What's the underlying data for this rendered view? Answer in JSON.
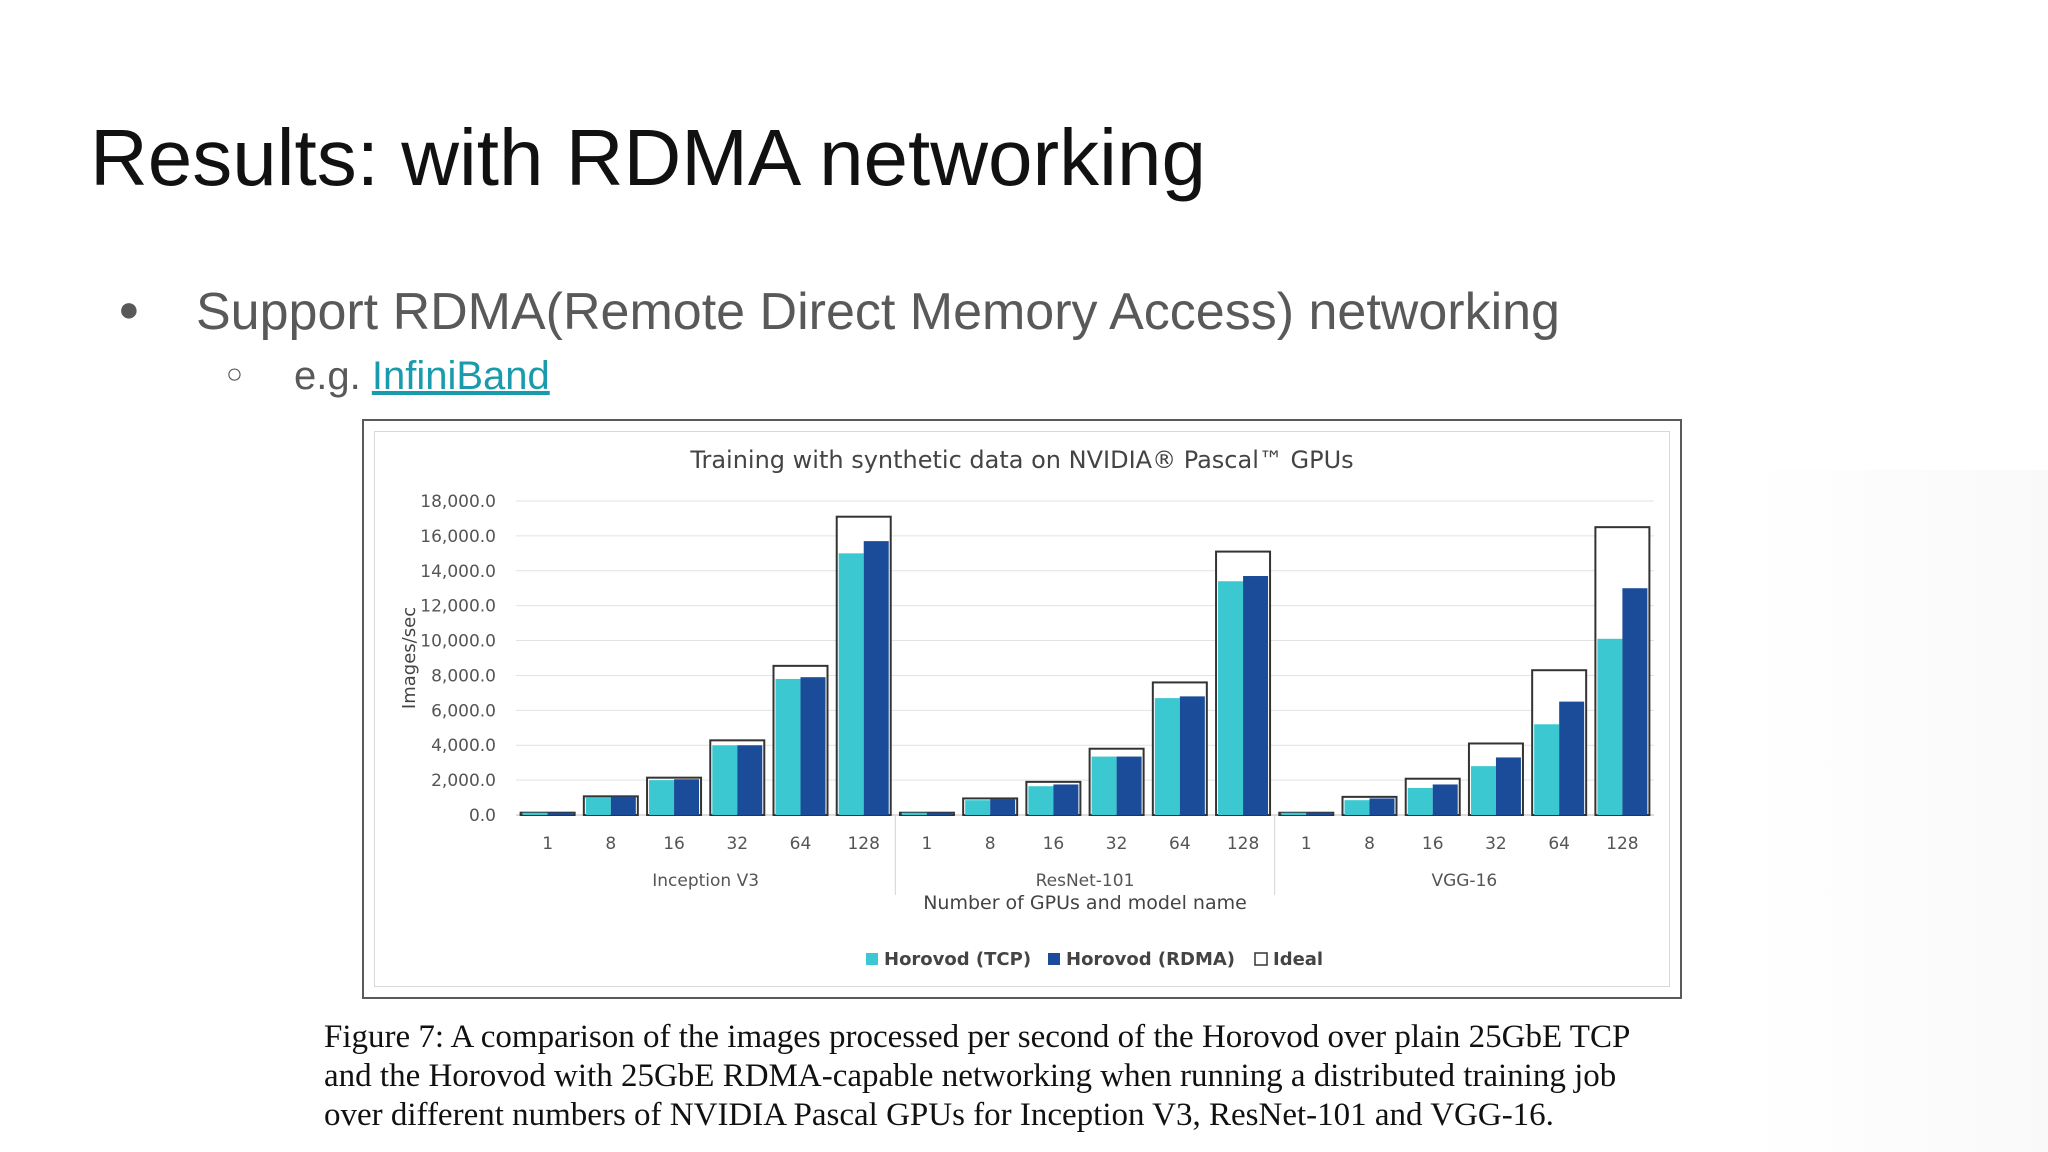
{
  "slide": {
    "title": "Results: with RDMA networking",
    "bullet": "Support RDMA(Remote Direct Memory Access) networking",
    "sub_prefix": "e.g. ",
    "sub_link": "InfiniBand"
  },
  "colors": {
    "tcp": "#3cc8d0",
    "rdma": "#1b4c9a",
    "ideal": "#ffffff",
    "link": "#1a9bad"
  },
  "chart_data": {
    "type": "bar",
    "title": "Training with synthetic data on NVIDIA® Pascal™ GPUs",
    "xlabel": "Number of GPUs and model name",
    "ylabel": "Images/sec",
    "ylim": [
      0,
      18000
    ],
    "yticks": [
      "0.0",
      "2,000.0",
      "4,000.0",
      "6,000.0",
      "8,000.0",
      "10,000.0",
      "12,000.0",
      "14,000.0",
      "16,000.0",
      "18,000.0"
    ],
    "grid": true,
    "legend_position": "bottom",
    "groups": [
      {
        "name": "Inception V3",
        "categories": [
          "1",
          "8",
          "16",
          "32",
          "64",
          "128"
        ]
      },
      {
        "name": "ResNet-101",
        "categories": [
          "1",
          "8",
          "16",
          "32",
          "64",
          "128"
        ]
      },
      {
        "name": "VGG-16",
        "categories": [
          "1",
          "8",
          "16",
          "32",
          "64",
          "128"
        ]
      }
    ],
    "series": [
      {
        "name": "Horovod (TCP)",
        "values": [
          133,
          1000,
          2000,
          4000,
          7800,
          15000,
          131,
          850,
          1650,
          3350,
          6700,
          13400,
          130,
          850,
          1550,
          2800,
          5200,
          10100
        ]
      },
      {
        "name": "Horovod (RDMA)",
        "values": [
          133,
          1050,
          2050,
          4000,
          7900,
          15700,
          131,
          900,
          1750,
          3350,
          6800,
          13700,
          130,
          950,
          1750,
          3300,
          6500,
          13000
        ]
      },
      {
        "name": "Ideal",
        "values": [
          133,
          1070,
          2140,
          4280,
          8550,
          17100,
          131,
          950,
          1900,
          3800,
          7600,
          15100,
          130,
          1040,
          2080,
          4100,
          8300,
          16500
        ]
      }
    ]
  },
  "caption": {
    "line1": "Figure 7: A comparison of the images processed per second of the Horovod over plain 25GbE TCP",
    "line2": "and the Horovod with 25GbE RDMA-capable networking when running a distributed training job",
    "line3": "over different numbers of NVIDIA Pascal GPUs for Inception V3, ResNet-101 and VGG-16."
  }
}
